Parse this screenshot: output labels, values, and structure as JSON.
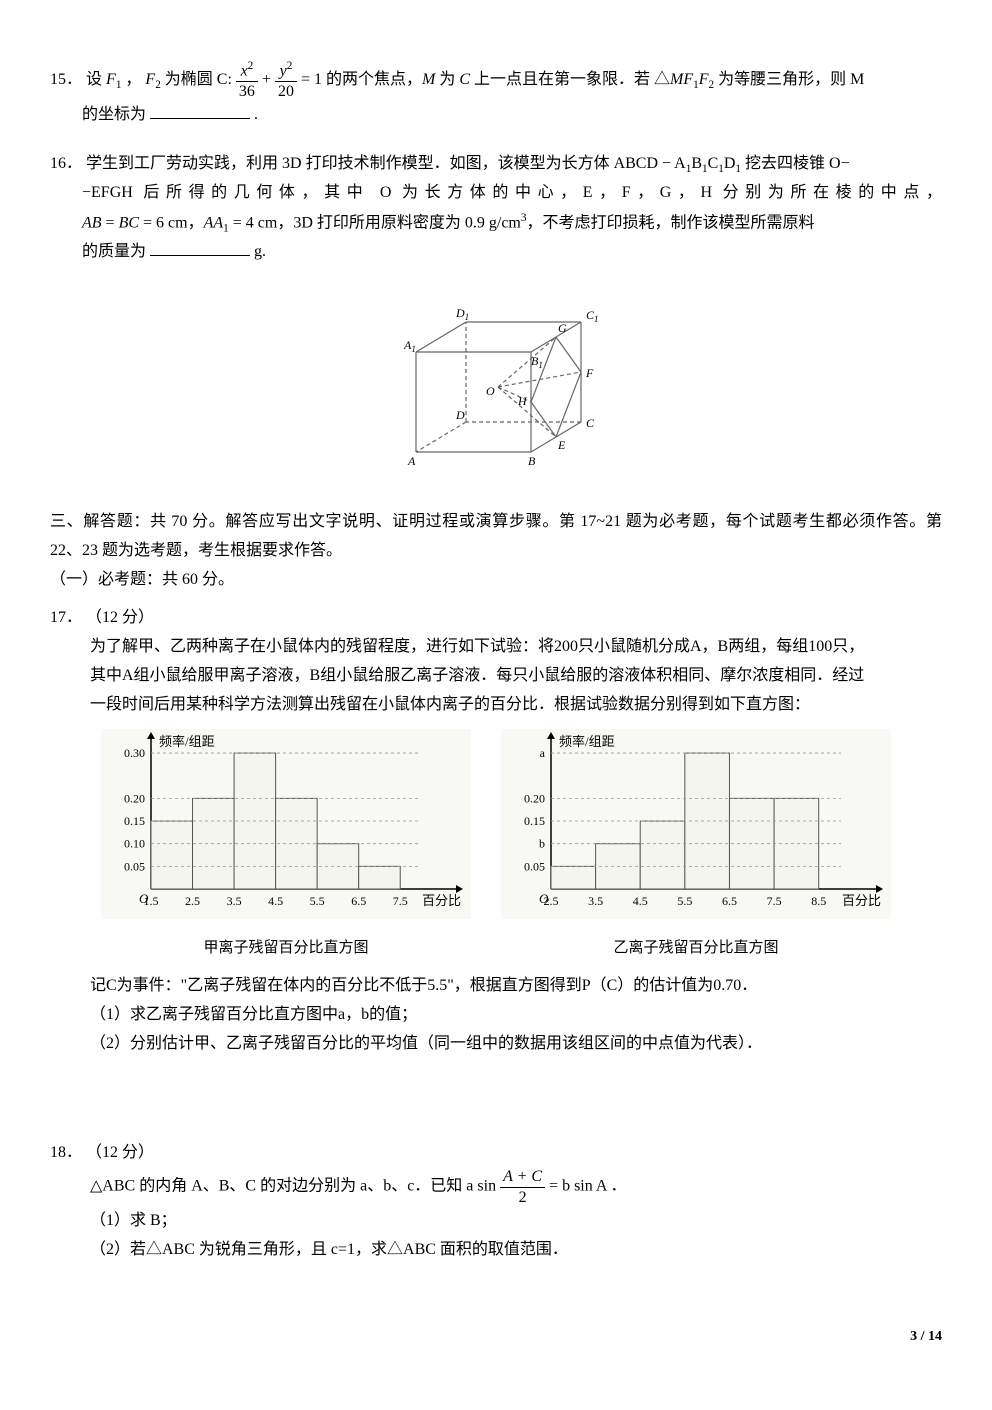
{
  "q15": {
    "num": "15．",
    "text_before": "设 ",
    "F1": "F",
    "F1_sub": "1",
    "comma": "，",
    "F2": "F",
    "F2_sub": "2",
    "text_1": " 为椭圆 C: ",
    "frac1_num": "x",
    "frac1_num_sup": "2",
    "frac1_den": "36",
    "plus": " + ",
    "frac2_num": "y",
    "frac2_num_sup": "2",
    "frac2_den": "20",
    "text_2": " = 1 的两个焦点，M 为 C 上一点且在第一象限．若 △MF",
    "sub1": "1",
    "text_3": "F",
    "sub2": "2",
    "text_4": " 为等腰三角形，则 M ",
    "line2": "的坐标为",
    "period": "."
  },
  "q16": {
    "num": "16．",
    "line1_a": "学生到工厂劳动实践，利用 3D 打印技术制作模型．如图，该模型为长方体 ABCD − A",
    "sub1": "1",
    "line1_b": "B",
    "sub2": "1",
    "line1_c": "C",
    "sub3": "1",
    "line1_d": "D",
    "sub4": "1",
    "line1_e": " 挖去四棱锥 O−",
    "line2_a": "−EFGH 后所得的几何体，其中 O 为长方体的中心，E，F，G，H 分别为所在棱的中点，",
    "line3_a": "AB = BC = 6 cm，AA",
    "line3_sub": "1",
    "line3_b": " = 4 cm，3D 打印所用原料密度为 0.9 g/cm",
    "line3_sup": "3",
    "line3_c": "，不考虑打印损耗，制作该模型所需原料",
    "line4": "的质量为",
    "unit": "g."
  },
  "section3": {
    "heading": "三、解答题：共 70 分。解答应写出文字说明、证明过程或演算步骤。第 17~21 题为必考题，每个试题考生都必须作答。第 22、23 题为选考题，考生根据要求作答。",
    "sub1": "（一）必考题：共 60 分。"
  },
  "q17": {
    "num": "17．",
    "points": "（12 分）",
    "line1": "为了解甲、乙两种离子在小鼠体内的残留程度，进行如下试验：将200只小鼠随机分成A，B两组，每组100只，",
    "line2": "其中A组小鼠给服甲离子溶液，B组小鼠给服乙离子溶液．每只小鼠给服的溶液体积相同、摩尔浓度相同．经过",
    "line3": "一段时间后用某种科学方法测算出残留在小鼠体内离子的百分比．根据试验数据分别得到如下直方图：",
    "chart1": {
      "ylabel": "频率/组距",
      "xlabel": "百分比",
      "caption": "甲离子残留百分比直方图",
      "yticks": [
        "0.05",
        "0.10",
        "0.15",
        "0.20",
        "0.30"
      ],
      "ytick_vals": [
        0.05,
        0.1,
        0.15,
        0.2,
        0.3
      ],
      "xticks": [
        "1.5",
        "2.5",
        "3.5",
        "4.5",
        "5.5",
        "6.5",
        "7.5"
      ],
      "values": [
        0.15,
        0.2,
        0.3,
        0.2,
        0.1,
        0.05
      ],
      "bar_color": "#f5f5f0",
      "bar_border": "#555555",
      "axis_color": "#000000",
      "background": "#f8f8f5",
      "ymax": 0.32
    },
    "chart2": {
      "ylabel": "频率/组距",
      "xlabel": "百分比",
      "caption": "乙离子残留百分比直方图",
      "yticks": [
        "0.05",
        "b",
        "0.15",
        "0.20",
        "a"
      ],
      "ytick_vals": [
        0.05,
        0.1,
        0.15,
        0.2,
        0.3
      ],
      "xticks": [
        "2.5",
        "3.5",
        "4.5",
        "5.5",
        "6.5",
        "7.5",
        "8.5"
      ],
      "values": [
        0.05,
        0.1,
        0.15,
        0.3,
        0.2,
        0.2
      ],
      "bar_color": "#f5f5f0",
      "bar_border": "#555555",
      "axis_color": "#000000",
      "background": "#f8f8f5",
      "ymax": 0.32
    },
    "line4": "记C为事件：\"乙离子残留在体内的百分比不低于5.5\"，根据直方图得到P（C）的估计值为0.70．",
    "sub1": "（1）求乙离子残留百分比直方图中a，b的值；",
    "sub2": "（2）分别估计甲、乙离子残留百分比的平均值（同一组中的数据用该组区间的中点值为代表）．"
  },
  "q18": {
    "num": "18．",
    "points": "（12 分）",
    "line1_a": "△ABC 的内角 A、B、C 的对边分别为 a、b、c．已知 a sin ",
    "frac_num": "A + C",
    "frac_den": "2",
    "line1_b": " = b sin A ．",
    "sub1": "（1）求 B；",
    "sub2": "（2）若△ABC 为锐角三角形，且 c=1，求△ABC 面积的取值范围．"
  },
  "cuboid": {
    "labels": {
      "A": "A",
      "B": "B",
      "C": "C",
      "D": "D",
      "A1": "A",
      "B1": "B",
      "C1": "C",
      "D1": "D",
      "A1_sub": "1",
      "B1_sub": "1",
      "C1_sub": "1",
      "D1_sub": "1",
      "E": "E",
      "F": "F",
      "G": "G",
      "H": "H",
      "O": "O"
    },
    "stroke": "#666666",
    "dashed": "4,3"
  },
  "pagenum": "3 / 14"
}
